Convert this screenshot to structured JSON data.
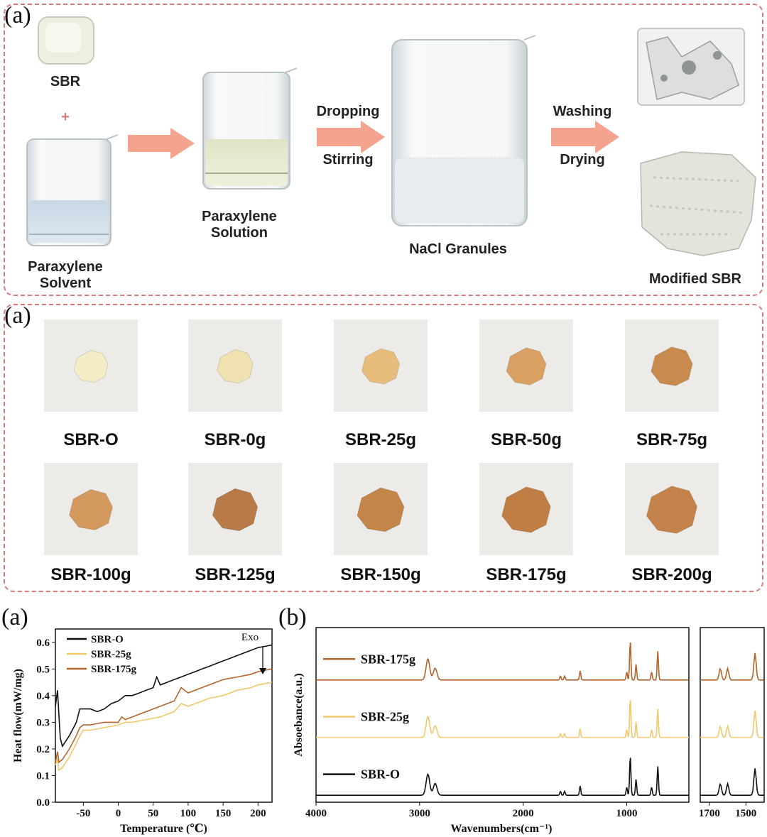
{
  "panel_top": {
    "label": "(a)",
    "sbr": "SBR",
    "plus": "+",
    "solvent_line1": "Paraxylene",
    "solvent_line2": "Solvent",
    "solution_line1": "Paraxylene",
    "solution_line2": "Solution",
    "step1_top": "Dropping",
    "step1_bottom": "Stirring",
    "nacl": "NaCl Granules",
    "step2_top": "Washing",
    "step2_bottom": "Drying",
    "modified": "Modified SBR",
    "colors": {
      "arrow": "#f4a38e",
      "border": "#d97a7a"
    }
  },
  "panel_mid": {
    "label": "(a)",
    "samples": [
      {
        "name": "SBR-O",
        "color": "#f3ecc4"
      },
      {
        "name": "SBR-0g",
        "color": "#efe2b0"
      },
      {
        "name": "SBR-25g",
        "color": "#e8bd7c"
      },
      {
        "name": "SBR-50g",
        "color": "#d9a062"
      },
      {
        "name": "SBR-75g",
        "color": "#c98a4e"
      },
      {
        "name": "SBR-100g",
        "color": "#d4995c"
      },
      {
        "name": "SBR-125g",
        "color": "#b87a48"
      },
      {
        "name": "SBR-150g",
        "color": "#c48549"
      },
      {
        "name": "SBR-175g",
        "color": "#c07e45"
      },
      {
        "name": "SBR-200g",
        "color": "#c4834a"
      }
    ]
  },
  "chart_data": [
    {
      "type": "line",
      "panel_label": "(a)",
      "xlabel": "Temperature (℃)",
      "ylabel": "Heat flow(mW/mg)",
      "xlim": [
        -90,
        220
      ],
      "ylim": [
        0.0,
        0.65
      ],
      "xticks": [
        "-50",
        "0",
        "50",
        "100",
        "150",
        "200"
      ],
      "yticks": [
        "0.0",
        "0.1",
        "0.2",
        "0.3",
        "0.4",
        "0.5",
        "0.6"
      ],
      "annotation": "Exo",
      "series": [
        {
          "name": "SBR-O",
          "color": "#111111",
          "x": [
            -90,
            -87,
            -85,
            -83,
            -80,
            -75,
            -70,
            -60,
            -55,
            -50,
            -40,
            -30,
            -20,
            -10,
            0,
            10,
            20,
            30,
            40,
            50,
            55,
            60,
            70,
            80,
            90,
            100,
            110,
            120,
            130,
            140,
            150,
            160,
            170,
            180,
            190,
            200,
            210,
            220
          ],
          "y": [
            0.36,
            0.42,
            0.33,
            0.24,
            0.21,
            0.23,
            0.25,
            0.3,
            0.35,
            0.35,
            0.35,
            0.34,
            0.35,
            0.37,
            0.38,
            0.4,
            0.4,
            0.41,
            0.42,
            0.43,
            0.47,
            0.44,
            0.45,
            0.46,
            0.47,
            0.48,
            0.49,
            0.5,
            0.51,
            0.52,
            0.53,
            0.54,
            0.55,
            0.56,
            0.57,
            0.58,
            0.585,
            0.59
          ]
        },
        {
          "name": "SBR-25g",
          "color": "#f0c86a",
          "x": [
            -90,
            -87,
            -85,
            -80,
            -70,
            -60,
            -55,
            -50,
            -40,
            -20,
            0,
            10,
            20,
            40,
            60,
            80,
            90,
            100,
            110,
            130,
            150,
            170,
            190,
            200,
            220
          ],
          "y": [
            0.14,
            0.16,
            0.12,
            0.13,
            0.17,
            0.22,
            0.25,
            0.27,
            0.27,
            0.28,
            0.29,
            0.3,
            0.3,
            0.31,
            0.32,
            0.34,
            0.37,
            0.36,
            0.37,
            0.39,
            0.4,
            0.42,
            0.43,
            0.44,
            0.45
          ]
        },
        {
          "name": "SBR-175g",
          "color": "#b4642a",
          "x": [
            -90,
            -87,
            -85,
            -80,
            -70,
            -60,
            -55,
            -50,
            -40,
            -20,
            0,
            5,
            10,
            20,
            40,
            60,
            80,
            90,
            100,
            110,
            130,
            150,
            170,
            190,
            200,
            220
          ],
          "y": [
            0.15,
            0.19,
            0.15,
            0.16,
            0.2,
            0.25,
            0.28,
            0.29,
            0.29,
            0.3,
            0.3,
            0.32,
            0.31,
            0.32,
            0.34,
            0.36,
            0.38,
            0.43,
            0.41,
            0.42,
            0.44,
            0.46,
            0.47,
            0.48,
            0.49,
            0.5
          ]
        }
      ]
    },
    {
      "type": "line",
      "panel_label": "(b)",
      "xlabel": "Wavenumbers(cm⁻¹)",
      "ylabel": "Absoebance(a.u.)",
      "xlim": [
        4000,
        400
      ],
      "xticks": [
        "4000",
        "3000",
        "2000",
        "1000"
      ],
      "inset_xticks": [
        "1700",
        "1500"
      ],
      "inset_xlim": [
        1750,
        1400
      ],
      "series": [
        {
          "name": "SBR-175g",
          "color": "#b4642a",
          "offset": 0.7
        },
        {
          "name": "SBR-25g",
          "color": "#f0c86a",
          "offset": 0.37
        },
        {
          "name": "SBR-O",
          "color": "#111111",
          "offset": 0.04
        }
      ],
      "peaks": [
        {
          "x": 2920,
          "h": 0.16
        },
        {
          "x": 2850,
          "h": 0.09
        },
        {
          "x": 1640,
          "h": 0.03
        },
        {
          "x": 1600,
          "h": 0.03
        },
        {
          "x": 1450,
          "h": 0.07
        },
        {
          "x": 1000,
          "h": 0.06
        },
        {
          "x": 966,
          "h": 0.3
        },
        {
          "x": 910,
          "h": 0.12
        },
        {
          "x": 760,
          "h": 0.06
        },
        {
          "x": 700,
          "h": 0.22
        }
      ]
    }
  ]
}
